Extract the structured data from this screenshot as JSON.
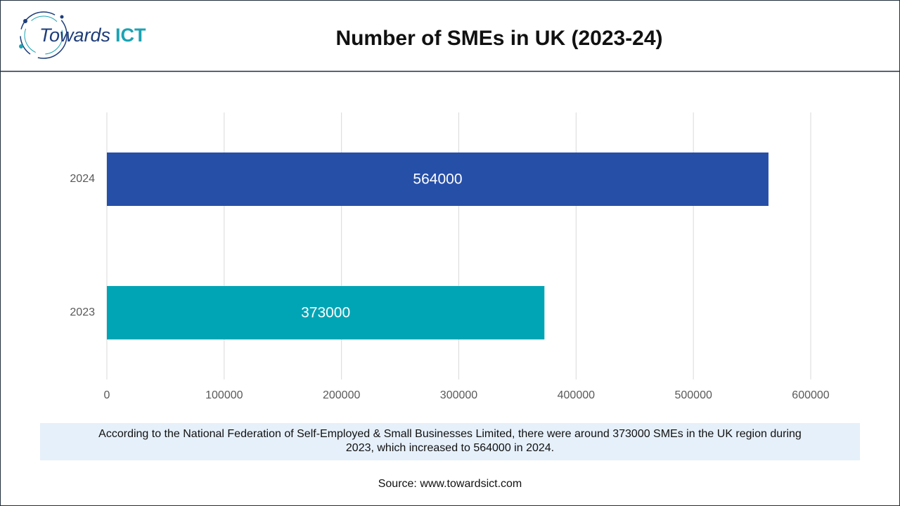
{
  "logo": {
    "word": "Towards",
    "brand": "ICT"
  },
  "chart_data": {
    "type": "hbar",
    "title": "Number of SMEs in UK (2023-24)",
    "categories": [
      "2023",
      "2024"
    ],
    "values": [
      373000,
      564000
    ],
    "colors": [
      "#00a5b5",
      "#264fa8"
    ],
    "xlim": [
      0,
      600000
    ],
    "xticks": [
      0,
      100000,
      200000,
      300000,
      400000,
      500000,
      600000
    ],
    "grid": true,
    "caption": [
      "According to the National Federation of Self-Employed & Small Businesses Limited, there were around 373000 SMEs in the UK region during",
      "2023, which increased to 564000 in 2024."
    ],
    "source": "Source: www.towardsict.com"
  }
}
